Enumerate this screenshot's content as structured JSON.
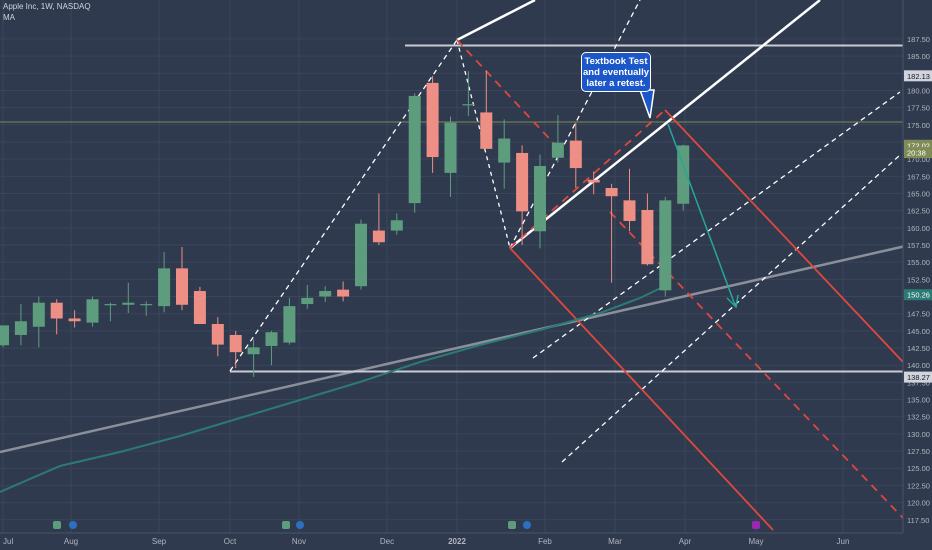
{
  "header": {
    "symbol": "Apple Inc, 1W, NASDAQ",
    "indicator": "MA"
  },
  "callout": {
    "lines": [
      "Textbook Test",
      "and eventually",
      "later a retest."
    ]
  },
  "colors": {
    "background": "#2f3a4f",
    "up": "#5d9d7e",
    "down": "#ee8f86",
    "price_line": "#7f8c56",
    "ma": "#2b7b74",
    "trend": "#8a8f99",
    "channel_white": "#ffffff",
    "channel_red": "#e0483e",
    "arrow": "#26a69a",
    "callout_bg": "#1c57c9",
    "axis_text": "#b2b5be"
  },
  "chart_data": {
    "type": "candlestick",
    "timeframe": "1W",
    "y_ticks": [
      187.5,
      185,
      182.5,
      180,
      177.5,
      175,
      172.5,
      170,
      167.5,
      165,
      162.5,
      160,
      157.5,
      155,
      152.5,
      150,
      147.5,
      145,
      142.5,
      140,
      137.5,
      135,
      132.5,
      130,
      127.5,
      125,
      122.5,
      120,
      117.5
    ],
    "ylim": [
      116.3,
      188.8
    ],
    "x_labels": [
      "Jul",
      "Aug",
      "Sep",
      "Oct",
      "Nov",
      "Dec",
      "2022",
      "Feb",
      "Mar",
      "Apr",
      "May",
      "Jun"
    ],
    "price_labels": [
      {
        "label": "182.13",
        "value": 182.13,
        "style": "light"
      },
      {
        "label": "172.02",
        "value": 172.02,
        "style": "last"
      },
      {
        "label": "20:38",
        "value": 170.95,
        "style": "last"
      },
      {
        "label": "150.26",
        "value": 150.26,
        "style": "ma"
      },
      {
        "label": "138.27",
        "value": 138.27,
        "style": "light"
      }
    ],
    "last_price": 172.02,
    "ma_value": 150.26,
    "candles": [
      {
        "open": 142.9,
        "high": 145.7,
        "low": 142.6,
        "close": 145.8
      },
      {
        "open": 144.4,
        "high": 148.9,
        "low": 142.9,
        "close": 146.4
      },
      {
        "open": 145.6,
        "high": 150.0,
        "low": 142.6,
        "close": 149.1
      },
      {
        "open": 149.1,
        "high": 149.6,
        "low": 144.5,
        "close": 146.8
      },
      {
        "open": 146.8,
        "high": 148.0,
        "low": 145.5,
        "close": 146.4
      },
      {
        "open": 146.2,
        "high": 150.0,
        "low": 145.6,
        "close": 149.6
      },
      {
        "open": 148.9,
        "high": 149.1,
        "low": 146.4,
        "close": 148.9
      },
      {
        "open": 148.8,
        "high": 152.0,
        "low": 147.6,
        "close": 149.1
      },
      {
        "open": 148.8,
        "high": 149.3,
        "low": 147.2,
        "close": 148.9
      },
      {
        "open": 148.6,
        "high": 156.5,
        "low": 147.7,
        "close": 154.1
      },
      {
        "open": 154.1,
        "high": 157.2,
        "low": 148.0,
        "close": 148.8
      },
      {
        "open": 150.8,
        "high": 151.4,
        "low": 146.0,
        "close": 146.0
      },
      {
        "open": 146.0,
        "high": 147.0,
        "low": 141.3,
        "close": 143.0
      },
      {
        "open": 144.4,
        "high": 145.0,
        "low": 139.6,
        "close": 141.9
      },
      {
        "open": 141.6,
        "high": 143.8,
        "low": 138.3,
        "close": 142.6
      },
      {
        "open": 142.8,
        "high": 145.0,
        "low": 140.0,
        "close": 144.8
      },
      {
        "open": 143.3,
        "high": 149.8,
        "low": 143.0,
        "close": 148.6
      },
      {
        "open": 148.9,
        "high": 151.7,
        "low": 148.2,
        "close": 149.8
      },
      {
        "open": 150.0,
        "high": 151.5,
        "low": 149.2,
        "close": 150.8
      },
      {
        "open": 151.0,
        "high": 152.2,
        "low": 149.3,
        "close": 150.0
      },
      {
        "open": 151.5,
        "high": 161.2,
        "low": 151.0,
        "close": 160.6
      },
      {
        "open": 159.6,
        "high": 165.0,
        "low": 157.5,
        "close": 157.9
      },
      {
        "open": 159.6,
        "high": 162.1,
        "low": 159.0,
        "close": 161.1
      },
      {
        "open": 163.6,
        "high": 179.6,
        "low": 162.2,
        "close": 179.2
      },
      {
        "open": 181.1,
        "high": 182.1,
        "low": 168.0,
        "close": 170.3
      },
      {
        "open": 168.0,
        "high": 176.2,
        "low": 164.5,
        "close": 175.3
      },
      {
        "open": 178.0,
        "high": 182.8,
        "low": 176.3,
        "close": 178.0
      },
      {
        "open": 176.8,
        "high": 182.9,
        "low": 172.0,
        "close": 171.5
      },
      {
        "open": 169.5,
        "high": 175.8,
        "low": 165.7,
        "close": 173.0
      },
      {
        "open": 170.9,
        "high": 172.0,
        "low": 157.5,
        "close": 162.4
      },
      {
        "open": 159.5,
        "high": 170.7,
        "low": 157.0,
        "close": 169.0
      },
      {
        "open": 170.2,
        "high": 176.4,
        "low": 169.5,
        "close": 172.4
      },
      {
        "open": 172.7,
        "high": 175.3,
        "low": 165.8,
        "close": 168.7
      },
      {
        "open": 167.0,
        "high": 168.2,
        "low": 164.9,
        "close": 166.6
      },
      {
        "open": 165.8,
        "high": 166.4,
        "low": 152.0,
        "close": 164.6
      },
      {
        "open": 164.0,
        "high": 168.6,
        "low": 159.5,
        "close": 161.0
      },
      {
        "open": 162.6,
        "high": 165.0,
        "low": 154.5,
        "close": 154.7
      },
      {
        "open": 150.9,
        "high": 164.5,
        "low": 150.0,
        "close": 164.0
      },
      {
        "open": 163.5,
        "high": 172.1,
        "low": 162.5,
        "close": 172.0
      }
    ]
  }
}
